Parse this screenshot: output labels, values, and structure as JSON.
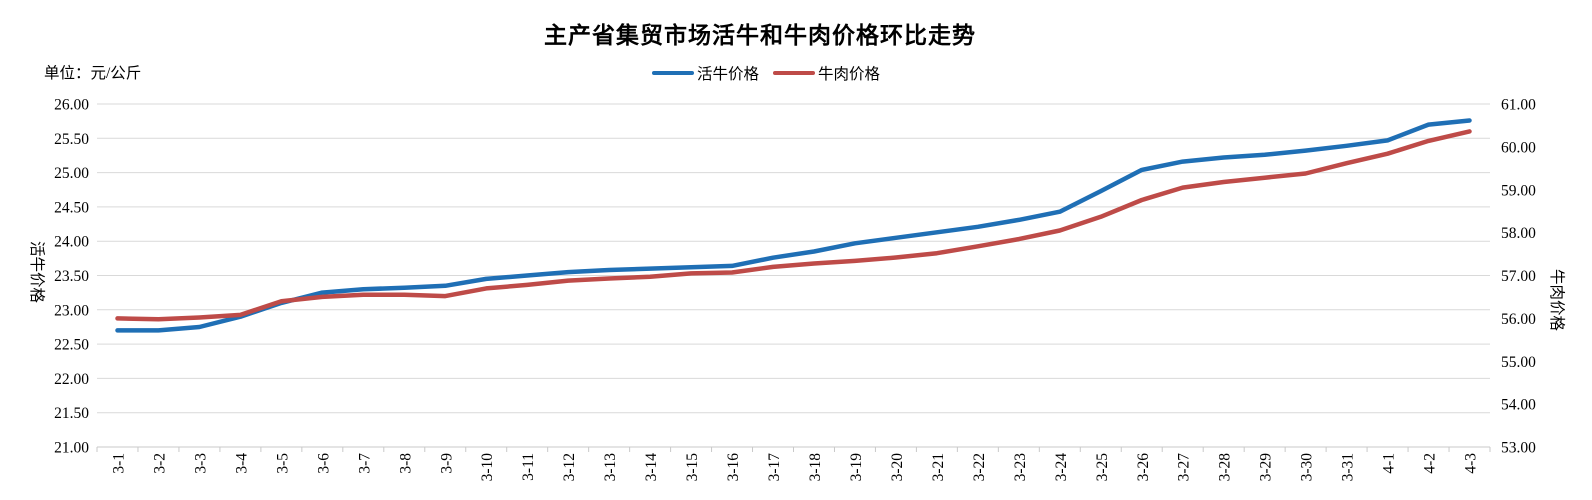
{
  "chart_data": {
    "type": "line",
    "title": "主产省集贸市场活牛和牛肉价格环比走势",
    "unit_label": "单位：元/公斤",
    "grid": "horizontal",
    "legend_position": "top-center",
    "left_axis": {
      "title": "活牛价格",
      "min": 21.0,
      "max": 26.0,
      "step": 0.5,
      "tick_labels": [
        "26.00",
        "25.50",
        "25.00",
        "24.50",
        "24.00",
        "23.50",
        "23.00",
        "22.50",
        "22.00",
        "21.50",
        "21.00"
      ]
    },
    "right_axis": {
      "title": "牛肉价格",
      "min": 53.0,
      "max": 61.0,
      "step": 1.0,
      "tick_labels": [
        "61.00",
        "60.00",
        "59.00",
        "58.00",
        "57.00",
        "56.00",
        "55.00",
        "54.00",
        "53.00"
      ]
    },
    "categories": [
      "3-1",
      "3-2",
      "3-3",
      "3-4",
      "3-5",
      "3-6",
      "3-7",
      "3-8",
      "3-9",
      "3-10",
      "3-11",
      "3-12",
      "3-13",
      "3-14",
      "3-15",
      "3-16",
      "3-17",
      "3-18",
      "3-19",
      "3-20",
      "3-21",
      "3-22",
      "3-23",
      "3-24",
      "3-25",
      "3-26",
      "3-27",
      "3-28",
      "3-29",
      "3-30",
      "3-31",
      "4-1",
      "4-2",
      "4-3"
    ],
    "series": [
      {
        "name": "活牛价格",
        "axis": "left",
        "color": "#1f6fb5",
        "values": [
          22.7,
          22.7,
          22.75,
          22.9,
          23.1,
          23.25,
          23.3,
          23.32,
          23.35,
          23.45,
          23.5,
          23.55,
          23.58,
          23.6,
          23.62,
          23.64,
          23.76,
          23.85,
          23.97,
          24.05,
          24.13,
          24.21,
          24.31,
          24.43,
          24.73,
          25.04,
          25.16,
          25.22,
          25.26,
          25.32,
          25.39,
          25.47,
          25.7,
          25.76
        ]
      },
      {
        "name": "牛肉价格",
        "axis": "right",
        "color": "#be4b48",
        "values": [
          56.0,
          55.98,
          56.02,
          56.08,
          56.4,
          56.5,
          56.55,
          56.55,
          56.52,
          56.7,
          56.78,
          56.88,
          56.93,
          56.97,
          57.05,
          57.07,
          57.2,
          57.28,
          57.34,
          57.42,
          57.52,
          57.68,
          57.85,
          58.05,
          58.37,
          58.76,
          59.05,
          59.18,
          59.28,
          59.38,
          59.62,
          59.84,
          60.14,
          60.36
        ]
      }
    ]
  },
  "colors": {
    "background": "#ffffff",
    "gridline": "#d9d9d9",
    "axis_line": "#c9c9c9",
    "text": "#000000"
  }
}
